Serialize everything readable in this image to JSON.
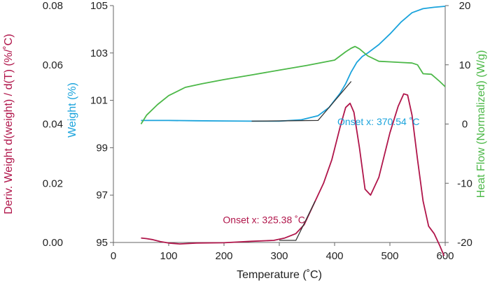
{
  "chart_data": {
    "type": "line",
    "x_axis": {
      "label": "Temperature (˚C)",
      "range": [
        0,
        600
      ],
      "ticks": [
        0,
        100,
        200,
        300,
        400,
        500,
        600
      ]
    },
    "left_outer_axis": {
      "label": "Deriv. Weight d(weight) / d(T) (%/˚C)",
      "range": [
        0,
        0.08
      ],
      "ticks": [
        0.0,
        0.02,
        0.04,
        0.06,
        0.08
      ],
      "tick_labels": [
        "0.00",
        "0.02",
        "0.04",
        "0.06",
        "0.08"
      ],
      "color": "#b0154a"
    },
    "left_inner_axis": {
      "label": "Weight (%)",
      "range": [
        95,
        105
      ],
      "ticks": [
        95,
        97,
        99,
        101,
        103,
        105
      ],
      "color": "#1aa3dc"
    },
    "right_axis": {
      "label": "Heat Flow (Normalized) (W/g)",
      "range": [
        -20,
        20
      ],
      "ticks": [
        -20,
        -10,
        0,
        10,
        20
      ],
      "color": "#4cb848"
    },
    "series": [
      {
        "axis": "left_inner",
        "color": "#1aa3dc",
        "x": [
          50,
          100,
          150,
          200,
          250,
          300,
          340,
          370,
          390,
          400,
          410,
          420,
          430,
          440,
          450,
          460,
          480,
          500,
          520,
          540,
          560,
          580,
          600
        ],
        "y": [
          100.15,
          100.15,
          100.14,
          100.13,
          100.12,
          100.12,
          100.18,
          100.35,
          100.7,
          101.0,
          101.3,
          101.7,
          102.2,
          102.6,
          102.85,
          103.0,
          103.35,
          103.8,
          104.3,
          104.7,
          104.87,
          104.93,
          104.97
        ]
      },
      {
        "axis": "right",
        "color": "#4cb848",
        "x": [
          50,
          60,
          80,
          100,
          130,
          160,
          200,
          250,
          300,
          350,
          400,
          420,
          430,
          437,
          445,
          460,
          480,
          500,
          520,
          540,
          550,
          560,
          575,
          590,
          600
        ],
        "y": [
          0,
          1.5,
          3.3,
          4.8,
          6.2,
          6.8,
          7.5,
          8.3,
          9.1,
          9.9,
          10.8,
          12.2,
          12.8,
          13.1,
          12.7,
          11.5,
          10.6,
          10.5,
          10.4,
          10.3,
          10.0,
          8.5,
          8.4,
          7.2,
          6.3
        ]
      },
      {
        "axis": "left_outer",
        "color": "#b0154a",
        "x": [
          50,
          60,
          70,
          85,
          100,
          120,
          150,
          200,
          250,
          290,
          310,
          330,
          345,
          355,
          365,
          380,
          395,
          410,
          420,
          428,
          435,
          445,
          455,
          465,
          480,
          500,
          515,
          525,
          532,
          540,
          550,
          560,
          570,
          580,
          590,
          598
        ],
        "y": [
          0.0015,
          0.0013,
          0.001,
          0.0003,
          -0.0002,
          -0.0005,
          -0.0002,
          -0.0001,
          0.0004,
          0.0007,
          0.0015,
          0.003,
          0.006,
          0.01,
          0.014,
          0.02,
          0.028,
          0.039,
          0.0456,
          0.047,
          0.044,
          0.032,
          0.018,
          0.016,
          0.022,
          0.037,
          0.046,
          0.0502,
          0.0498,
          0.043,
          0.028,
          0.014,
          0.0055,
          0.003,
          -0.001,
          -0.0045
        ]
      }
    ],
    "tangent_lines": [
      {
        "color": "#333333",
        "axis": "left_inner",
        "points": [
          [
            250,
            100.12
          ],
          [
            370,
            100.15
          ],
          [
            430,
            101.8
          ]
        ]
      },
      {
        "color": "#333333",
        "axis": "left_outer",
        "points": [
          [
            300,
            0.0007
          ],
          [
            330,
            0.0007
          ],
          [
            365,
            0.014
          ]
        ]
      }
    ],
    "annotations": [
      {
        "text": "Onset x: 370.54 ˚C",
        "color": "#1aa3dc",
        "x": 405,
        "y": 99.95,
        "axis": "left_inner"
      },
      {
        "text": "Onset x: 325.38 ˚C",
        "color": "#b0154a",
        "x": 198,
        "y": 0.0065,
        "axis": "left_outer"
      }
    ]
  }
}
